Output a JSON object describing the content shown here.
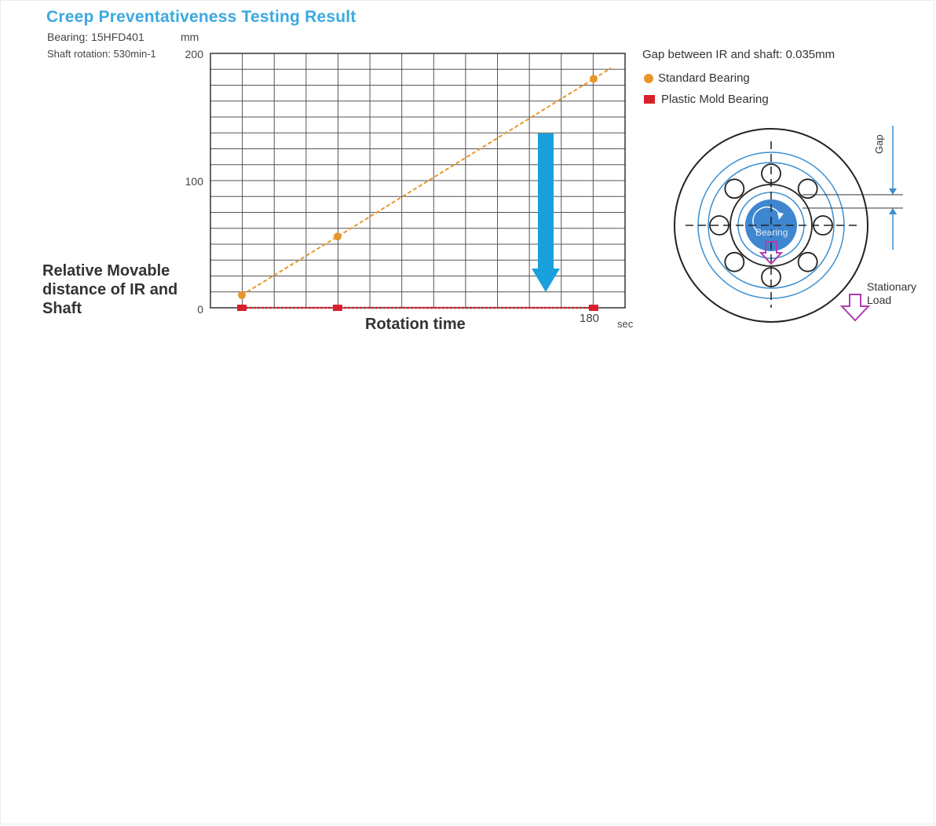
{
  "title": "Creep Preventativeness Testing Result",
  "meta": {
    "bearing": "Bearing: 15HFD401",
    "shaft_rotation": "Shaft rotation: 530min-1",
    "y_unit": "mm"
  },
  "chart_data": {
    "type": "line",
    "title": "Creep Preventativeness Testing Result",
    "xlabel": "Rotation time",
    "x_unit": "sec",
    "ylabel": "Relative Movable distance of IR and Shaft",
    "y_unit": "mm",
    "ylim": [
      0,
      200
    ],
    "xlim": [
      0,
      180
    ],
    "y_ticks": [
      "200",
      "100",
      "0"
    ],
    "x_ticks": [
      "180"
    ],
    "grid": true,
    "series": [
      {
        "name": "Standard Bearing",
        "color": "#e8962a",
        "marker": "circle",
        "x": [
          0,
          49,
          180
        ],
        "y": [
          10,
          56,
          180
        ]
      },
      {
        "name": "Plastic Mold Bearing",
        "color": "#d8202a",
        "marker": "square",
        "x": [
          0,
          49,
          180
        ],
        "y": [
          0,
          0,
          0
        ]
      }
    ]
  },
  "annotations": {
    "gap_info": "Gap between IR and shaft: 0.035mm",
    "gap": "Gap",
    "bearing": "Bearing",
    "stationary_load_line1": "Stationary",
    "stationary_load_line2": "Load"
  },
  "colors": {
    "title": "#3ba9e0",
    "arrow": "#1aa0dc",
    "diagram_blue": "#3b8fd0",
    "load_arrow": "#b23cb0"
  }
}
